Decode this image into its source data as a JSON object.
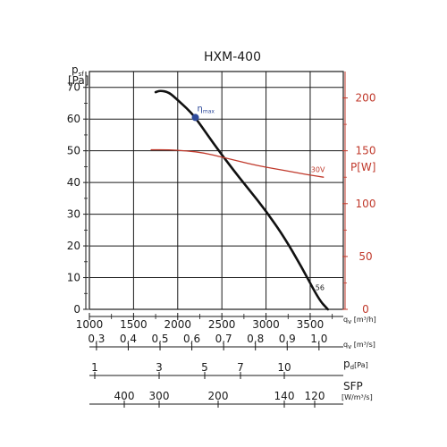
{
  "chart_data": {
    "type": "line",
    "title": "HXM-400",
    "colors": {
      "grid": "#1a1a1a",
      "main": "#111111",
      "power": "#c0392b",
      "eta_marker": "#2e4a9a"
    },
    "y_left": {
      "label_top": "p",
      "label_sub": "sf",
      "unit": "[Pa]",
      "range": [
        0,
        75
      ],
      "ticks": [
        0,
        10,
        20,
        30,
        40,
        50,
        60,
        70
      ]
    },
    "y_right": {
      "label": "P[W]",
      "range": [
        0,
        225
      ],
      "ticks": [
        0,
        50,
        100,
        150,
        200
      ],
      "tick_labels": [
        "0",
        "50",
        "100",
        "150",
        "200"
      ]
    },
    "x_axes": [
      {
        "id": "qv_m3h",
        "unit_label": "q",
        "unit_sub": "v",
        "unit_rest": " [m³/h]",
        "ticks": [
          {
            "value": 1000,
            "label": "1000"
          },
          {
            "value": 1500,
            "label": "1500"
          },
          {
            "value": 2000,
            "label": "2000"
          },
          {
            "value": 2500,
            "label": "2500"
          },
          {
            "value": 3000,
            "label": "3000"
          },
          {
            "value": 3500,
            "label": "3500"
          }
        ]
      },
      {
        "id": "qv_m3s",
        "unit_label": "q",
        "unit_sub": "v",
        "unit_rest": " [m³/s]",
        "ticks": [
          {
            "value": 0.3,
            "label": "0,3"
          },
          {
            "value": 0.4,
            "label": "0,4"
          },
          {
            "value": 0.5,
            "label": "0,5"
          },
          {
            "value": 0.6,
            "label": "0,6"
          },
          {
            "value": 0.7,
            "label": "0,7"
          },
          {
            "value": 0.8,
            "label": "0,8"
          },
          {
            "value": 0.9,
            "label": "0,9"
          },
          {
            "value": 1.0,
            "label": "1,0"
          }
        ]
      },
      {
        "id": "pd",
        "unit_label": "p",
        "unit_sub": "d",
        "unit_rest": "[Pa]",
        "ticks": [
          {
            "value": 1,
            "label": "1"
          },
          {
            "value": 3,
            "label": "3"
          },
          {
            "value": 5,
            "label": "5"
          },
          {
            "value": 7,
            "label": "7"
          },
          {
            "value": 10,
            "label": "10"
          }
        ]
      },
      {
        "id": "sfp",
        "unit_label": "SFP",
        "unit_line2": "[W/m³/s]",
        "ticks": [
          {
            "value": 400,
            "label": "400"
          },
          {
            "value": 300,
            "label": "300"
          },
          {
            "value": 200,
            "label": "200"
          },
          {
            "value": 140,
            "label": "140"
          },
          {
            "value": 120,
            "label": "120"
          }
        ]
      }
    ],
    "series": [
      {
        "id": "pressure",
        "axis": "left",
        "x": [
          1750,
          1800,
          1900,
          2000,
          2100,
          2200,
          2400,
          2600,
          2800,
          3000,
          3200,
          3400,
          3600,
          3700
        ],
        "y": [
          68.5,
          69,
          68.5,
          66,
          63.5,
          60.5,
          52.5,
          45,
          38,
          31,
          23,
          13.5,
          3,
          0
        ]
      },
      {
        "id": "power",
        "axis": "right",
        "x": [
          1700,
          1900,
          2100,
          2300,
          2500,
          2700,
          2900,
          3100,
          3300,
          3500,
          3650
        ],
        "y": [
          151,
          151,
          150,
          148,
          144,
          140,
          136,
          133,
          130,
          127,
          125
        ]
      }
    ],
    "annotations": {
      "eta": {
        "symbol": "η",
        "sub": "max",
        "x": 2200,
        "y": 60.5
      },
      "label_30v": {
        "text": "30V",
        "x": 3650,
        "y": 128
      },
      "label_56": {
        "text": "56",
        "x": 3620,
        "y": 6
      }
    }
  }
}
